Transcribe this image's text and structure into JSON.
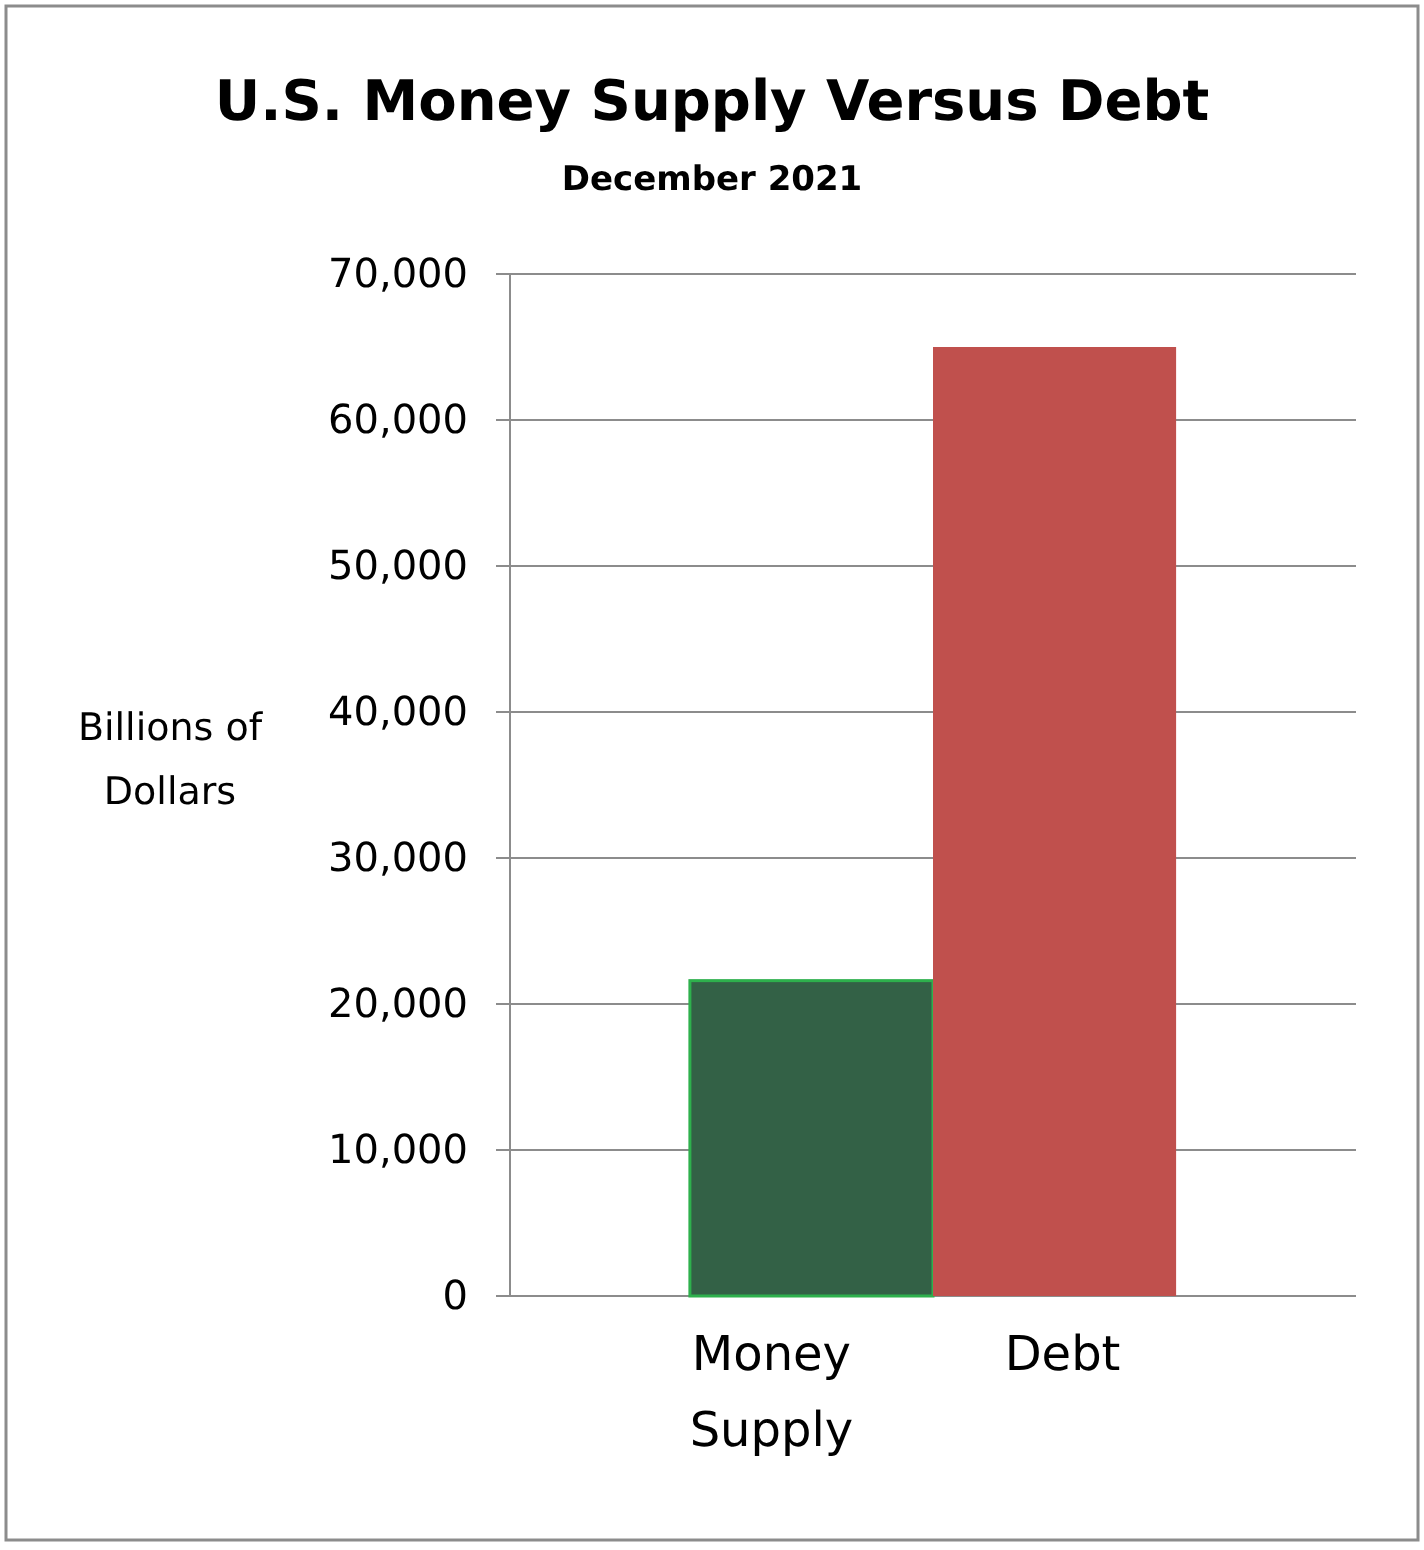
{
  "chart_data": {
    "type": "bar",
    "title": "U.S. Money Supply Versus Debt",
    "subtitle": "December 2021",
    "ylabel": "Billions of Dollars",
    "categories": [
      "Money Supply",
      "Debt"
    ],
    "values": [
      21600,
      65000
    ],
    "colors": [
      "#336146",
      "#c0504d"
    ],
    "ylim": [
      0,
      70000
    ],
    "yticks": [
      {
        "value": 0,
        "label": "0"
      },
      {
        "value": 10000,
        "label": "10,000"
      },
      {
        "value": 20000,
        "label": "20,000"
      },
      {
        "value": 30000,
        "label": "30,000"
      },
      {
        "value": 40000,
        "label": "40,000"
      },
      {
        "value": 50000,
        "label": "50,000"
      },
      {
        "value": 60000,
        "label": "60,000"
      },
      {
        "value": 70000,
        "label": "70,000"
      }
    ],
    "grid": "y"
  }
}
